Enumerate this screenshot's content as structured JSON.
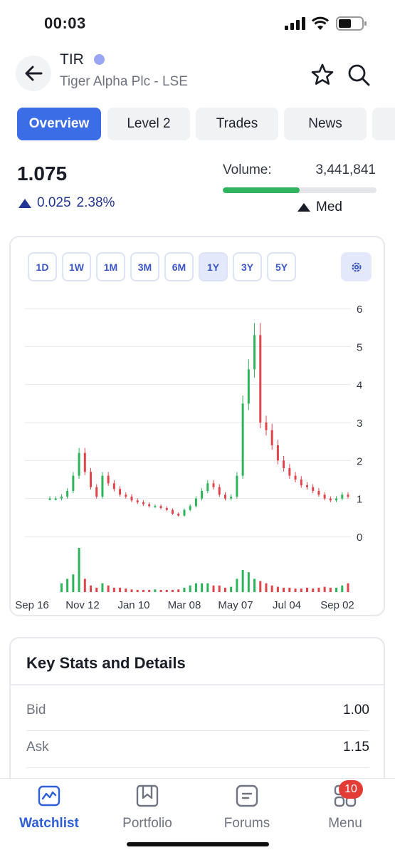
{
  "status_bar": {
    "time": "00:03"
  },
  "header": {
    "ticker": "TIR",
    "company": "Tiger Alpha Plc - LSE"
  },
  "tabs": [
    {
      "label": "Overview",
      "active": true
    },
    {
      "label": "Level 2",
      "active": false
    },
    {
      "label": "Trades",
      "active": false
    },
    {
      "label": "News",
      "active": false
    }
  ],
  "quote": {
    "price": "1.075",
    "change": "0.025",
    "change_pct": "2.38%",
    "volume_label": "Volume:",
    "volume_value": "3,441,841",
    "volume_level": "Med",
    "volume_fill_fraction": 0.5
  },
  "chart": {
    "ranges": [
      {
        "label": "1D",
        "active": false
      },
      {
        "label": "1W",
        "active": false
      },
      {
        "label": "1M",
        "active": false
      },
      {
        "label": "3M",
        "active": false
      },
      {
        "label": "6M",
        "active": false
      },
      {
        "label": "1Y",
        "active": true
      },
      {
        "label": "3Y",
        "active": false
      },
      {
        "label": "5Y",
        "active": false
      }
    ]
  },
  "chart_data": {
    "type": "candlestick",
    "x_tick_labels": [
      "Sep 16",
      "Nov 12",
      "Jan 10",
      "Mar 08",
      "May 07",
      "Jul 04",
      "Sep 02"
    ],
    "y_tick_labels": [
      "6",
      "5",
      "4",
      "3",
      "2",
      "1",
      "0"
    ],
    "ylim": [
      0,
      6
    ],
    "grid": true,
    "up_color": "#2db45a",
    "down_color": "#e0454b",
    "series": [
      {
        "name": "",
        "type": "price",
        "values": [
          1.0,
          1.0,
          1.05,
          1.2,
          1.6,
          2.2,
          1.7,
          1.3,
          1.05,
          1.6,
          1.4,
          1.25,
          1.1,
          1.05,
          0.95,
          0.9,
          0.85,
          0.8,
          0.8,
          0.75,
          0.7,
          0.6,
          0.55,
          0.7,
          0.8,
          1.0,
          1.2,
          1.4,
          1.3,
          1.1,
          1.0,
          1.05,
          1.6,
          3.5,
          4.4,
          5.3,
          3.0,
          2.8,
          2.4,
          2.0,
          1.8,
          1.6,
          1.5,
          1.35,
          1.3,
          1.2,
          1.1,
          1.0,
          0.95,
          1.0,
          1.1,
          1.05
        ]
      },
      {
        "name": "",
        "type": "volume",
        "values": [
          0,
          0,
          0.2,
          0.3,
          0.4,
          1.0,
          0.3,
          0.15,
          0.1,
          0.2,
          0.15,
          0.1,
          0.1,
          0.08,
          0.06,
          0.05,
          0.05,
          0.05,
          0.06,
          0.05,
          0.05,
          0.05,
          0.06,
          0.1,
          0.15,
          0.2,
          0.2,
          0.2,
          0.15,
          0.15,
          0.1,
          0.12,
          0.3,
          0.5,
          0.45,
          0.3,
          0.25,
          0.2,
          0.15,
          0.12,
          0.1,
          0.1,
          0.08,
          0.08,
          0.1,
          0.08,
          0.1,
          0.12,
          0.1,
          0.1,
          0.15,
          0.2
        ]
      }
    ]
  },
  "key_stats": {
    "title": "Key Stats and Details",
    "rows": [
      {
        "label": "Bid",
        "value": "1.00"
      },
      {
        "label": "Ask",
        "value": "1.15"
      }
    ]
  },
  "bottom_nav": {
    "items": [
      {
        "label": "Watchlist",
        "icon": "chart-icon",
        "active": true
      },
      {
        "label": "Portfolio",
        "icon": "bookmark-icon",
        "active": false
      },
      {
        "label": "Forums",
        "icon": "forum-icon",
        "active": false
      },
      {
        "label": "Menu",
        "icon": "menu-icon",
        "active": false
      }
    ],
    "menu_badge": "10"
  },
  "colors": {
    "accent": "#3a6de6",
    "change_text": "#233594",
    "volume_fill": "#2fb35c",
    "badge": "#e33b36"
  }
}
